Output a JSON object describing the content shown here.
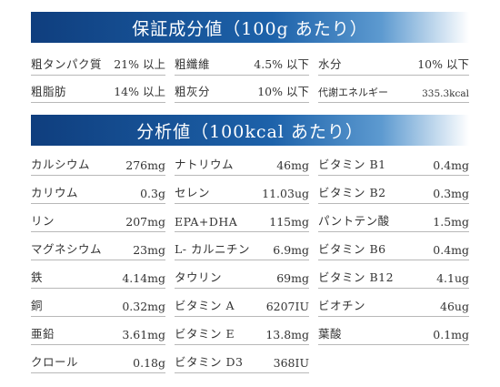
{
  "section1": {
    "title": "保証成分値（100g あたり）",
    "rows": [
      [
        {
          "label": "粗タンパク質",
          "value": "21% 以上"
        },
        {
          "label": "粗纖維",
          "value": "4.5% 以下"
        },
        {
          "label": "水分",
          "value": "10% 以下"
        }
      ],
      [
        {
          "label": "粗脂肪",
          "value": "14% 以上"
        },
        {
          "label": "粗灰分",
          "value": "10% 以下"
        },
        {
          "label": "代謝エネルギー",
          "value": "335.3kcal"
        }
      ]
    ]
  },
  "section2": {
    "title": "分析値（100kcal あたり）",
    "rows": [
      [
        {
          "label": "カルシウム",
          "value": "276mg"
        },
        {
          "label": "ナトリウム",
          "value": "46mg"
        },
        {
          "label": "ビタミン B1",
          "value": "0.4mg"
        }
      ],
      [
        {
          "label": "カリウム",
          "value": "0.3g"
        },
        {
          "label": "セレン",
          "value": "11.03ug"
        },
        {
          "label": "ビタミン B2",
          "value": "0.3mg"
        }
      ],
      [
        {
          "label": "リン",
          "value": "207mg"
        },
        {
          "label": "EPA+DHA",
          "value": "115mg"
        },
        {
          "label": "パントテン酸",
          "value": "1.5mg"
        }
      ],
      [
        {
          "label": "マグネシウム",
          "value": "23mg"
        },
        {
          "label": "L- カルニチン",
          "value": "6.9mg"
        },
        {
          "label": "ビタミン B6",
          "value": "0.4mg"
        }
      ],
      [
        {
          "label": "鉄",
          "value": "4.14mg"
        },
        {
          "label": "タウリン",
          "value": "69mg"
        },
        {
          "label": "ビタミン B12",
          "value": "4.1ug"
        }
      ],
      [
        {
          "label": "銅",
          "value": "0.32mg"
        },
        {
          "label": "ビタミン A",
          "value": "6207IU"
        },
        {
          "label": "ビオチン",
          "value": "46ug"
        }
      ],
      [
        {
          "label": "亜鉛",
          "value": "3.61mg"
        },
        {
          "label": "ビタミン E",
          "value": "13.8mg"
        },
        {
          "label": "葉酸",
          "value": "0.1mg"
        }
      ],
      [
        {
          "label": "クロール",
          "value": "0.18g"
        },
        {
          "label": "ビタミン D3",
          "value": "368IU"
        }
      ]
    ]
  }
}
